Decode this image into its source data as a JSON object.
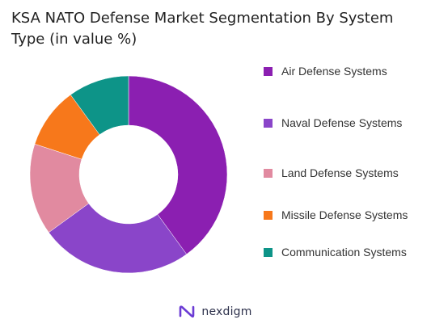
{
  "chart_data": {
    "type": "pie",
    "donut": true,
    "title": "KSA NATO Defense Market Segmentation By System Type (in value %)",
    "categories": [
      "Air Defense Systems",
      "Naval Defense Systems",
      "Land Defense Systems",
      "Missile Defense Systems",
      "Communication Systems"
    ],
    "values": [
      40,
      25,
      15,
      10,
      10
    ],
    "colors": [
      "#8b1fb1",
      "#8a45c9",
      "#e18aa0",
      "#f7781b",
      "#0d9488"
    ],
    "legend_position": "right"
  },
  "footer": {
    "brand": "nexdigm"
  }
}
